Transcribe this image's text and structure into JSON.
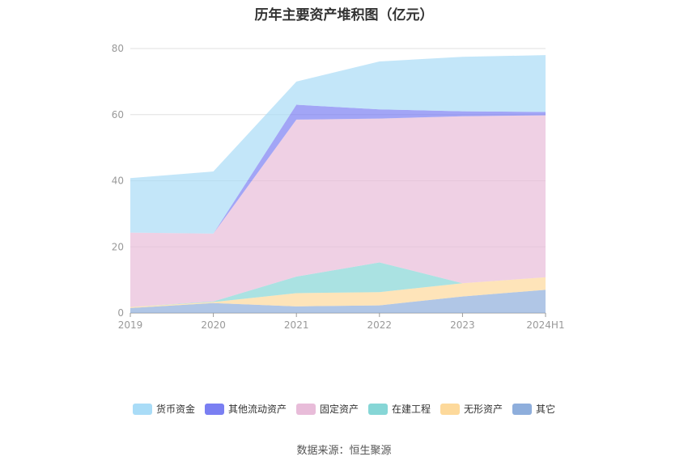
{
  "chart_data": {
    "type": "area",
    "stacked": true,
    "title": "历年主要资产堆积图（亿元）",
    "categories": [
      "2019",
      "2020",
      "2021",
      "2022",
      "2023",
      "2024H1"
    ],
    "ylim": [
      0,
      80
    ],
    "yticks": [
      0,
      20,
      40,
      60,
      80
    ],
    "grid": true,
    "legend_position": "bottom",
    "series": [
      {
        "name": "其它",
        "color": "#8eaedc",
        "values": [
          1.5,
          3.0,
          2.0,
          2.3,
          5.0,
          7.0
        ]
      },
      {
        "name": "无形资产",
        "color": "#fdd99b",
        "values": [
          0.3,
          0.3,
          4.0,
          4.0,
          4.0,
          3.8
        ]
      },
      {
        "name": "在建工程",
        "color": "#86d6d6",
        "values": [
          0.0,
          0.2,
          5.0,
          9.0,
          0.0,
          0.0
        ]
      },
      {
        "name": "固定资产",
        "color": "#e8bcd9",
        "values": [
          22.5,
          20.5,
          47.5,
          43.5,
          50.5,
          49.0
        ]
      },
      {
        "name": "其他流动资产",
        "color": "#7a7ff2",
        "values": [
          0.0,
          0.0,
          4.5,
          2.8,
          1.5,
          1.0
        ]
      },
      {
        "name": "货币资金",
        "color": "#a9dcf7",
        "values": [
          16.5,
          18.8,
          7.0,
          14.5,
          16.5,
          17.2
        ]
      }
    ]
  },
  "legend_order": [
    "货币资金",
    "其他流动资产",
    "固定资产",
    "在建工程",
    "无形资产",
    "其它"
  ],
  "source_text": "数据来源：恒生聚源"
}
